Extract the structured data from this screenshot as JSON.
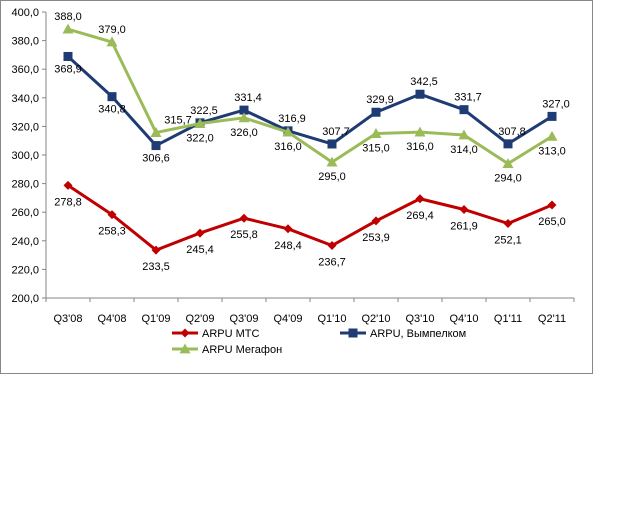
{
  "chart_data": {
    "type": "line",
    "title": "",
    "xlabel": "",
    "ylabel": "",
    "categories": [
      "Q3'08",
      "Q4'08",
      "Q1'09",
      "Q2'09",
      "Q3'09",
      "Q4'09",
      "Q1'10",
      "Q2'10",
      "Q3'10",
      "Q4'10",
      "Q1'11",
      "Q2'11"
    ],
    "ylim": [
      200,
      400
    ],
    "y_ticks": [
      "200,0",
      "220,0",
      "240,0",
      "260,0",
      "280,0",
      "300,0",
      "320,0",
      "340,0",
      "360,0",
      "380,0",
      "400,0"
    ],
    "grid": false,
    "legend_position": "bottom",
    "series": [
      {
        "name": "ARPU МТС",
        "color": "#c00000",
        "marker": "diamond",
        "values": [
          278.8,
          258.3,
          233.5,
          245.4,
          255.8,
          248.4,
          236.7,
          253.9,
          269.4,
          261.9,
          252.1,
          265.0
        ],
        "labels": [
          "278,8",
          "258,3",
          "233,5",
          "245,4",
          "255,8",
          "248,4",
          "236,7",
          "253,9",
          "269,4",
          "261,9",
          "252,1",
          "265,0"
        ]
      },
      {
        "name": "ARPU, Вымпелком",
        "color": "#1f3b73",
        "marker": "square",
        "values": [
          368.9,
          340.8,
          306.6,
          322.5,
          331.4,
          316.9,
          307.7,
          329.9,
          342.5,
          331.7,
          307.8,
          327.0
        ],
        "labels": [
          "368,9",
          "340,8",
          "306,6",
          "322,5",
          "331,4",
          "316,9",
          "307,7",
          "329,9",
          "342,5",
          "331,7",
          "307,8",
          "327,0"
        ]
      },
      {
        "name": "ARPU Мегафон",
        "color": "#9bbb59",
        "marker": "triangle",
        "values": [
          388.0,
          379.0,
          315.7,
          322.0,
          326.0,
          316.0,
          295.0,
          315.0,
          316.0,
          314.0,
          294.0,
          313.0
        ],
        "labels": [
          "388,0",
          "379,0",
          "315,7",
          "322,0",
          "326,0",
          "316,0",
          "295,0",
          "315,0",
          "316,0",
          "314,0",
          "294,0",
          "313,0"
        ]
      }
    ]
  }
}
